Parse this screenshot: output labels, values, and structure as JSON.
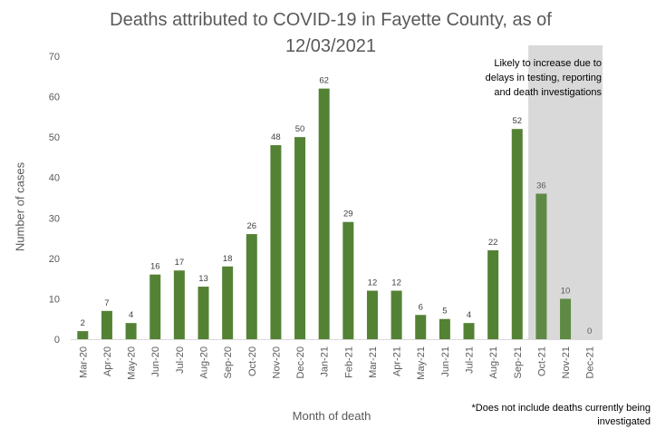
{
  "chart_data": {
    "type": "bar",
    "title": "Deaths attributed to COVID-19 in Fayette County, as of 12/03/2021",
    "xlabel": "Month of death",
    "ylabel": "Number of cases",
    "ylim": [
      0,
      70
    ],
    "yticks": [
      0,
      10,
      20,
      30,
      40,
      50,
      60,
      70
    ],
    "grid": false,
    "categories": [
      "Mar-20",
      "Apr-20",
      "May-20",
      "Jun-20",
      "Jul-20",
      "Aug-20",
      "Sep-20",
      "Oct-20",
      "Nov-20",
      "Dec-20",
      "Jan-21",
      "Feb-21",
      "Mar-21",
      "Apr-21",
      "May-21",
      "Jun-21",
      "Jul-21",
      "Aug-21",
      "Sep-21",
      "Oct-21",
      "Nov-21",
      "Dec-21"
    ],
    "values": [
      2,
      7,
      4,
      16,
      17,
      13,
      18,
      26,
      48,
      50,
      62,
      29,
      12,
      12,
      6,
      5,
      4,
      22,
      52,
      36,
      10,
      0
    ],
    "shaded_categories": [
      "Oct-21",
      "Nov-21",
      "Dec-21"
    ],
    "shade_note": "Likely to increase due to delays in testing, reporting and death investigations",
    "footnote": "*Does not include deaths currently being investigated",
    "colors": {
      "bar": "#548235",
      "bar_shaded": "#5f8a46",
      "shade": "#d9d9d9",
      "axis": "#d9d9d9",
      "label": "#404040",
      "label_shaded": "#595959"
    }
  }
}
